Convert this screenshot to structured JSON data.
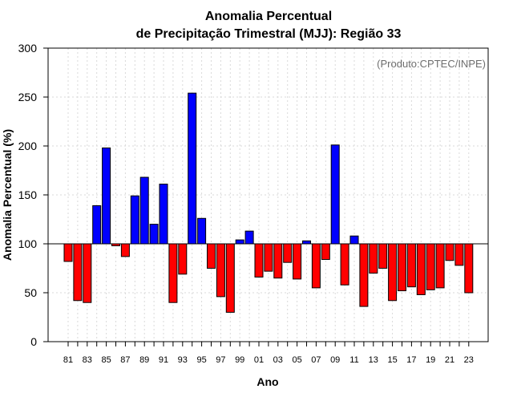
{
  "chart_data": {
    "type": "bar",
    "title_line1": "Anomalia Percentual",
    "title_line2": "de Precipitação Trimestral (MJJ): Região 33",
    "xlabel": "Ano",
    "ylabel": "Anomalia Percentual (%)",
    "credit": "(Produto:CPTEC/INPE)",
    "ylim": [
      0,
      300
    ],
    "yticks": [
      0,
      50,
      100,
      150,
      200,
      250,
      300
    ],
    "baseline": 100,
    "grid": true,
    "colors": {
      "above": "#0000ff",
      "below": "#ff0000"
    },
    "categories": [
      "81",
      "82",
      "83",
      "84",
      "85",
      "86",
      "87",
      "88",
      "89",
      "90",
      "91",
      "92",
      "93",
      "94",
      "95",
      "96",
      "97",
      "98",
      "99",
      "00",
      "01",
      "02",
      "03",
      "04",
      "05",
      "06",
      "07",
      "08",
      "09",
      "10",
      "11",
      "12",
      "13",
      "14",
      "15",
      "16",
      "17",
      "18",
      "19",
      "20",
      "21",
      "22",
      "23"
    ],
    "xtick_labels": [
      "81",
      "83",
      "85",
      "87",
      "89",
      "91",
      "93",
      "95",
      "97",
      "99",
      "01",
      "03",
      "05",
      "07",
      "09",
      "11",
      "13",
      "15",
      "17",
      "19",
      "21",
      "23"
    ],
    "values": [
      82,
      42,
      40,
      139,
      198,
      98,
      87,
      149,
      168,
      120,
      161,
      40,
      69,
      254,
      126,
      75,
      46,
      30,
      104,
      113,
      66,
      72,
      65,
      81,
      64,
      103,
      55,
      84,
      201,
      58,
      108,
      36,
      70,
      75,
      42,
      52,
      56,
      48,
      53,
      55,
      83,
      78,
      50
    ]
  }
}
